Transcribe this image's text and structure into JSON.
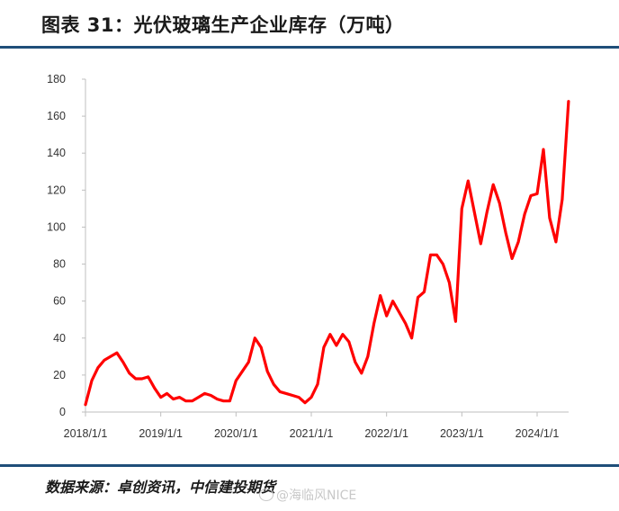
{
  "title": "图表 31：光伏玻璃生产企业库存（万吨）",
  "source": "数据来源：卓创资讯，中信建投期货",
  "watermark": "@海临风NICE",
  "colors": {
    "line": "#ff0000",
    "rule": "#1f4e79",
    "axis": "#bfbfbf"
  },
  "chart_data": {
    "type": "line",
    "title": "光伏玻璃生产企业库存（万吨）",
    "xlabel": "",
    "ylabel": "",
    "ylim": [
      0,
      180
    ],
    "yticks": [
      0,
      20,
      40,
      60,
      80,
      100,
      120,
      140,
      160,
      180
    ],
    "xticks": [
      "2018/1/1",
      "2019/1/1",
      "2020/1/1",
      "2021/1/1",
      "2022/1/1",
      "2023/1/1",
      "2024/1/1"
    ],
    "grid": false,
    "series": [
      {
        "name": "",
        "color": "#ff0000",
        "x": [
          "2018-01",
          "2018-02",
          "2018-03",
          "2018-04",
          "2018-05",
          "2018-06",
          "2018-07",
          "2018-08",
          "2018-09",
          "2018-10",
          "2018-11",
          "2018-12",
          "2019-01",
          "2019-02",
          "2019-03",
          "2019-04",
          "2019-05",
          "2019-06",
          "2019-07",
          "2019-08",
          "2019-09",
          "2019-10",
          "2019-11",
          "2019-12",
          "2020-01",
          "2020-02",
          "2020-03",
          "2020-04",
          "2020-05",
          "2020-06",
          "2020-07",
          "2020-08",
          "2020-09",
          "2020-10",
          "2020-11",
          "2020-12",
          "2021-01",
          "2021-02",
          "2021-03",
          "2021-04",
          "2021-05",
          "2021-06",
          "2021-07",
          "2021-08",
          "2021-09",
          "2021-10",
          "2021-11",
          "2021-12",
          "2022-01",
          "2022-02",
          "2022-03",
          "2022-04",
          "2022-05",
          "2022-06",
          "2022-07",
          "2022-08",
          "2022-09",
          "2022-10",
          "2022-11",
          "2022-12",
          "2023-01",
          "2023-02",
          "2023-03",
          "2023-04",
          "2023-05",
          "2023-06",
          "2023-07",
          "2023-08",
          "2023-09",
          "2023-10",
          "2023-11",
          "2023-12",
          "2024-01",
          "2024-02",
          "2024-03",
          "2024-04",
          "2024-05",
          "2024-06"
        ],
        "values": [
          4,
          17,
          24,
          28,
          30,
          32,
          27,
          21,
          18,
          18,
          19,
          13,
          8,
          10,
          7,
          8,
          6,
          6,
          8,
          10,
          9,
          7,
          6,
          6,
          17,
          22,
          27,
          40,
          35,
          22,
          15,
          11,
          10,
          9,
          8,
          5,
          8,
          15,
          35,
          42,
          36,
          42,
          38,
          27,
          21,
          30,
          48,
          63,
          52,
          60,
          54,
          48,
          40,
          62,
          65,
          85,
          85,
          80,
          70,
          49,
          110,
          125,
          108,
          91,
          108,
          123,
          113,
          97,
          83,
          92,
          107,
          117,
          118,
          142,
          105,
          92,
          115,
          168
        ]
      }
    ]
  }
}
